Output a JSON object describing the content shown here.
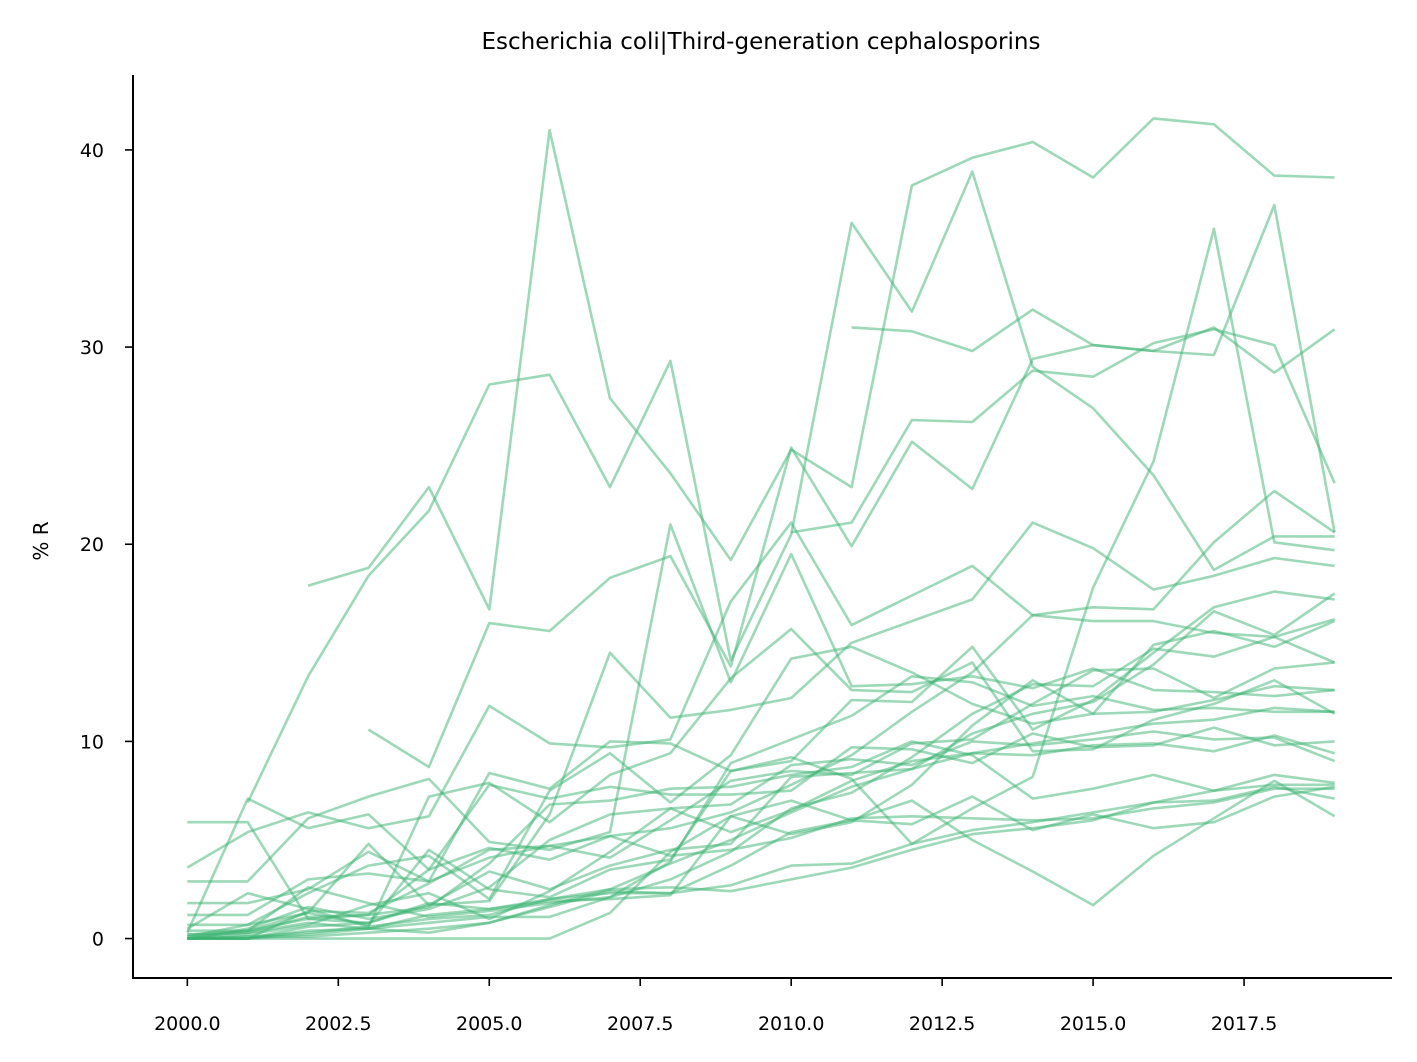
{
  "chart_data": {
    "type": "line",
    "title": "Escherichia coli|Third-generation cephalosporins",
    "xlabel": "",
    "ylabel": "% R",
    "xlim": [
      1999.1,
      2019.95
    ],
    "ylim": [
      -2.0,
      43.8
    ],
    "xticks": [
      2000.0,
      2002.5,
      2005.0,
      2007.5,
      2010.0,
      2012.5,
      2015.0,
      2017.5
    ],
    "xtick_labels": [
      "2000.0",
      "2002.5",
      "2005.0",
      "2007.5",
      "2010.0",
      "2012.5",
      "2015.0",
      "2017.5"
    ],
    "yticks": [
      0,
      10,
      20,
      30,
      40
    ],
    "ytick_labels": [
      "0",
      "10",
      "20",
      "30",
      "40"
    ],
    "grid": false,
    "legend": "none",
    "line_color": "#3cb371",
    "x": [
      2000,
      2001,
      2002,
      2003,
      2004,
      2005,
      2006,
      2007,
      2008,
      2009,
      2010,
      2011,
      2012,
      2013,
      2014,
      2015,
      2016,
      2017,
      2018,
      2019
    ],
    "series": [
      {
        "values": [
          null,
          null,
          17.9,
          18.8,
          22.9,
          16.7,
          41.0,
          27.4,
          23.6,
          19.2,
          24.8,
          22.9,
          38.2,
          39.6,
          40.4,
          38.6,
          41.6,
          41.3,
          38.7,
          38.6
        ]
      },
      {
        "values": [
          null,
          6.9,
          13.3,
          18.4,
          21.7,
          28.1,
          28.6,
          22.9,
          29.3,
          14.1,
          20.5,
          36.3,
          31.8,
          38.9,
          29.0,
          26.9,
          23.5,
          18.7,
          20.4,
          20.4
        ]
      },
      {
        "values": [
          null,
          null,
          null,
          null,
          null,
          null,
          null,
          null,
          null,
          null,
          null,
          31.0,
          30.8,
          29.8,
          31.9,
          30.1,
          29.8,
          31.0,
          28.7,
          30.9
        ]
      },
      {
        "values": [
          null,
          null,
          null,
          null,
          null,
          null,
          null,
          null,
          null,
          null,
          20.6,
          21.1,
          26.3,
          26.2,
          28.8,
          28.5,
          30.2,
          30.9,
          30.1,
          23.1
        ]
      },
      {
        "values": [
          null,
          null,
          null,
          10.6,
          8.7,
          16.0,
          15.6,
          18.3,
          19.4,
          13.8,
          24.9,
          19.9,
          25.2,
          22.8,
          29.4,
          30.1,
          29.8,
          29.6,
          37.2,
          20.6
        ]
      },
      {
        "values": [
          5.9,
          5.9,
          1.0,
          0.8,
          1.7,
          1.9,
          6.3,
          14.5,
          11.2,
          11.6,
          12.2,
          15.0,
          16.1,
          17.2,
          21.1,
          19.8,
          17.7,
          18.4,
          19.3,
          18.9
        ]
      },
      {
        "values": [
          3.6,
          5.4,
          6.4,
          5.6,
          6.2,
          11.8,
          9.9,
          9.7,
          10.1,
          17.1,
          21.1,
          15.9,
          17.4,
          18.9,
          16.4,
          16.8,
          16.7,
          20.1,
          22.7,
          20.6
        ]
      },
      {
        "values": [
          2.9,
          2.9,
          6.1,
          7.2,
          8.1,
          4.9,
          4.5,
          5.4,
          21.0,
          13.0,
          19.5,
          12.8,
          12.9,
          13.3,
          12.7,
          13.7,
          12.6,
          12.5,
          12.3,
          12.6
        ]
      },
      {
        "values": [
          1.8,
          1.8,
          2.5,
          4.4,
          2.9,
          8.4,
          7.6,
          10.0,
          9.9,
          8.5,
          9.0,
          12.1,
          12.0,
          14.8,
          10.6,
          12.1,
          14.5,
          16.8,
          17.6,
          17.2
        ]
      },
      {
        "values": [
          1.2,
          1.2,
          3.0,
          3.3,
          2.9,
          4.1,
          4.7,
          5.2,
          5.6,
          6.4,
          7.8,
          9.3,
          11.5,
          13.5,
          16.4,
          16.1,
          16.1,
          15.5,
          15.3,
          14.0
        ]
      },
      {
        "values": [
          0.7,
          0.7,
          2.3,
          3.7,
          4.2,
          2.0,
          7.5,
          9.4,
          6.9,
          9.3,
          14.2,
          14.8,
          13.5,
          11.9,
          10.9,
          11.4,
          14.9,
          15.6,
          14.8,
          16.1
        ]
      },
      {
        "values": [
          0.4,
          0.4,
          1.3,
          4.8,
          1.7,
          3.4,
          2.5,
          3.7,
          4.5,
          4.8,
          8.2,
          8.4,
          8.6,
          10.4,
          11.4,
          12.0,
          13.9,
          16.6,
          15.4,
          17.5
        ]
      },
      {
        "values": [
          0.2,
          0.4,
          2.6,
          1.8,
          1.1,
          1.4,
          1.8,
          2.1,
          3.9,
          8.9,
          10.1,
          11.3,
          13.3,
          13.0,
          11.8,
          12.3,
          11.6,
          11.7,
          11.5,
          11.5
        ]
      },
      {
        "values": [
          0.1,
          0.3,
          1.1,
          1.2,
          3.5,
          7.8,
          7.1,
          7.7,
          7.3,
          7.3,
          7.5,
          9.7,
          9.6,
          8.9,
          10.4,
          9.7,
          9.8,
          10.7,
          9.8,
          10.0
        ]
      },
      {
        "values": [
          0.0,
          0.5,
          1.6,
          1.0,
          1.5,
          2.6,
          5.0,
          6.3,
          6.6,
          6.8,
          8.8,
          9.1,
          8.8,
          10.0,
          9.8,
          10.1,
          10.5,
          10.1,
          10.2,
          9.0
        ]
      },
      {
        "values": [
          0.5,
          2.3,
          1.5,
          0.6,
          7.2,
          7.9,
          5.9,
          8.3,
          9.4,
          13.2,
          15.7,
          12.6,
          12.5,
          14.0,
          9.5,
          9.6,
          11.1,
          11.9,
          13.1,
          11.4
        ]
      },
      {
        "values": [
          0.3,
          7.1,
          5.6,
          6.3,
          3.5,
          4.6,
          4.0,
          5.2,
          4.2,
          4.5,
          5.1,
          6.1,
          6.2,
          6.1,
          6.0,
          6.1,
          6.6,
          6.9,
          7.6,
          7.6
        ]
      },
      {
        "values": [
          0.1,
          0.7,
          1.3,
          0.7,
          4.5,
          2.5,
          2.1,
          3.5,
          4.0,
          8.5,
          9.2,
          8.1,
          4.8,
          6.6,
          8.2,
          17.8,
          24.2,
          36.0,
          20.1,
          19.7
        ]
      },
      {
        "values": [
          0.0,
          0.1,
          0.1,
          0.3,
          0.5,
          0.8,
          1.6,
          2.4,
          2.3,
          3.7,
          5.4,
          6.0,
          5.8,
          7.2,
          5.5,
          6.3,
          5.6,
          5.9,
          7.2,
          7.7
        ]
      },
      {
        "values": [
          0.2,
          0.3,
          0.8,
          0.5,
          0.3,
          0.8,
          1.7,
          2.5,
          2.6,
          2.4,
          3.0,
          3.6,
          4.5,
          5.3,
          5.6,
          6.0,
          6.9,
          7.0,
          7.7,
          7.1
        ]
      },
      {
        "values": [
          0.0,
          0.0,
          0.2,
          0.5,
          1.2,
          1.5,
          2.0,
          2.3,
          2.3,
          2.7,
          3.7,
          3.8,
          4.8,
          5.5,
          5.9,
          6.4,
          6.9,
          7.5,
          7.8,
          7.8
        ]
      },
      {
        "values": [
          0.0,
          0.0,
          0.0,
          0.0,
          0.0,
          0.0,
          0.0,
          1.3,
          4.4,
          6.2,
          7.0,
          6.0,
          7.0,
          5.0,
          3.4,
          1.7,
          4.2,
          6.1,
          8.0,
          6.2
        ]
      },
      {
        "values": [
          0.0,
          0.2,
          0.7,
          1.7,
          2.3,
          1.0,
          2.4,
          4.4,
          6.6,
          5.4,
          6.5,
          8.0,
          9.0,
          9.4,
          9.3,
          9.8,
          9.9,
          9.5,
          10.3,
          9.4
        ]
      },
      {
        "values": [
          0.0,
          0.4,
          1.0,
          1.2,
          1.6,
          3.8,
          6.8,
          7.0,
          7.6,
          7.7,
          8.3,
          8.7,
          10.0,
          9.3,
          7.1,
          7.6,
          8.3,
          7.5,
          8.3,
          7.9
        ]
      },
      {
        "values": [
          0.0,
          0.0,
          1.4,
          1.3,
          2.8,
          4.5,
          4.7,
          4.1,
          6.0,
          8.0,
          8.5,
          8.3,
          9.9,
          10.1,
          11.9,
          13.6,
          13.7,
          12.2,
          13.7,
          14.0
        ]
      },
      {
        "values": [
          0.0,
          0.0,
          0.6,
          0.8,
          1.8,
          1.5,
          1.9,
          2.0,
          2.2,
          6.2,
          5.3,
          5.9,
          7.8,
          10.8,
          13.1,
          11.4,
          11.5,
          12.1,
          12.8,
          12.6
        ]
      },
      {
        "values": [
          0.0,
          0.0,
          0.4,
          0.5,
          0.8,
          1.1,
          1.1,
          2.1,
          3.0,
          4.4,
          6.6,
          7.4,
          9.2,
          11.4,
          12.9,
          12.8,
          14.7,
          14.3,
          15.3,
          16.2
        ]
      },
      {
        "values": [
          0.0,
          0.1,
          0.3,
          0.6,
          1.0,
          1.2,
          2.0,
          2.5,
          3.8,
          5.0,
          6.4,
          7.7,
          8.6,
          9.4,
          9.9,
          10.4,
          10.9,
          11.1,
          11.7,
          11.5
        ]
      }
    ]
  }
}
